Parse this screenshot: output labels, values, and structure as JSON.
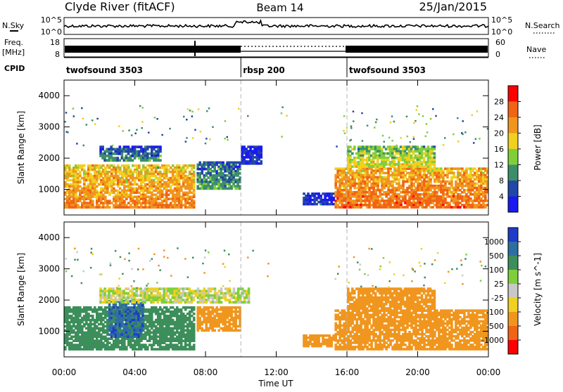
{
  "header": {
    "station": "Clyde River (fitACF)",
    "beam": "Beam 14",
    "date": "25/Jan/2015"
  },
  "noise_panel": {
    "left_label": "N.Sky",
    "left_ticks": [
      "10^5",
      "10^0"
    ],
    "right_ticks": [
      "10^5",
      "10^0"
    ],
    "right_label": "N.Search"
  },
  "freq_panel": {
    "left_label_line1": "Freq.",
    "left_label_line2": "[MHz]",
    "left_ticks": [
      "18",
      "8"
    ],
    "right_ticks": [
      "60",
      "0"
    ],
    "right_label": "Nave"
  },
  "cpid": {
    "label": "CPID",
    "segments": [
      {
        "name": "twofsound 3503",
        "start_hour": 0,
        "end_hour": 10
      },
      {
        "name": "rbsp 200",
        "start_hour": 10,
        "end_hour": 16
      },
      {
        "name": "twofsound 3503",
        "start_hour": 16,
        "end_hour": 24
      }
    ]
  },
  "chart_data": [
    {
      "type": "heatmap",
      "title": "",
      "xlabel": "Time UT",
      "ylabel": "Slant Range [km]",
      "xlim": [
        0,
        24
      ],
      "ylim": [
        180,
        4500
      ],
      "y_ticks": [
        "1000",
        "2000",
        "3000",
        "4000"
      ],
      "x_ticks": [
        "00:00",
        "04:00",
        "08:00",
        "12:00",
        "16:00",
        "20:00",
        "00:00"
      ],
      "colorbar": {
        "label": "Power [dB]",
        "ticks": [
          "4",
          "8",
          "12",
          "16",
          "20",
          "24",
          "28"
        ],
        "colors": [
          "#1a1af0",
          "#2347a8",
          "#3c8e6a",
          "#7fcf3a",
          "#f0d020",
          "#f0961e",
          "#f06414",
          "#ff0000"
        ]
      },
      "regions": [
        {
          "t0": 0.0,
          "t1": 7.4,
          "r0": 400,
          "r1": 1800,
          "value": 24
        },
        {
          "t0": 2.0,
          "t1": 5.5,
          "r0": 1900,
          "r1": 2400,
          "value": 10
        },
        {
          "t0": 7.5,
          "t1": 10.0,
          "r0": 1000,
          "r1": 1900,
          "value": 12
        },
        {
          "t0": 10.0,
          "t1": 11.2,
          "r0": 1800,
          "r1": 2400,
          "value": 6
        },
        {
          "t0": 13.5,
          "t1": 15.3,
          "r0": 500,
          "r1": 900,
          "value": 6
        },
        {
          "t0": 15.3,
          "t1": 24.0,
          "r0": 400,
          "r1": 1700,
          "value": 26
        },
        {
          "t0": 16.0,
          "t1": 21.0,
          "r0": 1700,
          "r1": 2400,
          "value": 18
        }
      ]
    },
    {
      "type": "heatmap",
      "title": "",
      "xlabel": "Time UT",
      "ylabel": "Slant Range [km]",
      "xlim": [
        0,
        24
      ],
      "ylim": [
        180,
        4500
      ],
      "y_ticks": [
        "1000",
        "2000",
        "3000",
        "4000"
      ],
      "x_ticks": [
        "00:00",
        "04:00",
        "08:00",
        "12:00",
        "16:00",
        "20:00",
        "00:00"
      ],
      "colorbar": {
        "label": "Velocity [m s^-1]",
        "ticks": [
          "1000",
          "500",
          "100",
          "25",
          "-25",
          "-100",
          "-500",
          "-1000"
        ],
        "colors": [
          "#1e3cc8",
          "#2e6ea0",
          "#3c8e5a",
          "#7fcf3a",
          "#c8c8c8",
          "#f0d020",
          "#f0961e",
          "#f06414",
          "#ff0000"
        ]
      },
      "regions": [
        {
          "t0": 0.0,
          "t1": 7.4,
          "r0": 400,
          "r1": 1800,
          "value": 300
        },
        {
          "t0": 2.5,
          "t1": 4.5,
          "r0": 800,
          "r1": 2000,
          "value": 800
        },
        {
          "t0": 2.0,
          "t1": 10.5,
          "r0": 1900,
          "r1": 2400,
          "value": 0
        },
        {
          "t0": 7.5,
          "t1": 10.0,
          "r0": 1000,
          "r1": 1800,
          "value": -300
        },
        {
          "t0": 13.5,
          "t1": 15.3,
          "r0": 500,
          "r1": 900,
          "value": -300
        },
        {
          "t0": 15.3,
          "t1": 24.0,
          "r0": 400,
          "r1": 1700,
          "value": -300
        },
        {
          "t0": 16.0,
          "t1": 21.0,
          "r0": 1700,
          "r1": 2400,
          "value": -200
        }
      ]
    }
  ]
}
